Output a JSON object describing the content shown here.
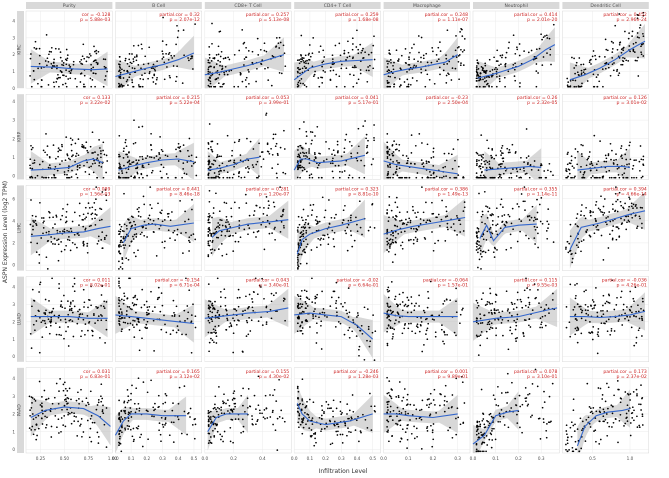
{
  "figure": {
    "ylabel": "ASPN Expression Level (log2 TPM)",
    "xlabel": "Infiltration Level"
  },
  "chart_data": {
    "type": "scatter",
    "columns": [
      "Purity",
      "B Cell",
      "CD8+ T Cell",
      "CD4+ T Cell",
      "Macrophage",
      "Neutrophil",
      "Dendritic Cell"
    ],
    "rows": [
      "KIRC",
      "KIRP",
      "LIHC",
      "LUAD",
      "PAAD"
    ],
    "x_ticks": [
      [
        "0.25",
        "0.50",
        "0.75",
        "1.00"
      ],
      [
        "0.0",
        "0.1",
        "0.2",
        "0.3",
        "0.4",
        "0.5"
      ],
      [
        "0.0",
        "0.2",
        "0.4"
      ],
      [
        "0.0",
        "0.1",
        "0.2",
        "0.3",
        "0.4",
        "0.5"
      ],
      [
        "0.0",
        "0.1",
        "0.2",
        "0.3"
      ],
      [
        "0.0",
        "0.1",
        "0.2",
        "0.3"
      ],
      [
        "0.5",
        "1.0"
      ]
    ],
    "x_ranges": [
      [
        0.1,
        1.0
      ],
      [
        0.0,
        0.55
      ],
      [
        0.0,
        0.6
      ],
      [
        0.0,
        0.55
      ],
      [
        0.0,
        0.35
      ],
      [
        0.0,
        0.38
      ],
      [
        0.1,
        1.25
      ]
    ],
    "y_ticks": [
      [
        "0",
        "1",
        "2",
        "3",
        "4"
      ],
      [
        "0",
        "1",
        "2",
        "3",
        "4"
      ],
      [
        "0",
        "2",
        "4",
        "6"
      ],
      [
        "0",
        "1",
        "2",
        "3",
        "4"
      ],
      [
        "0",
        "1",
        "2",
        "3",
        "4"
      ]
    ],
    "y_ranges": [
      [
        0,
        4.6
      ],
      [
        -0.2,
        4.4
      ],
      [
        -0.5,
        7.2
      ],
      [
        -0.3,
        4.6
      ],
      [
        -0.2,
        4.6
      ]
    ],
    "stats": [
      [
        {
          "label": "cor = -0.128",
          "p": "p = 5.88e-03"
        },
        {
          "label": "partial.cor = 0.32",
          "p": "p = 2.07e-12"
        },
        {
          "label": "partial.cor = 0.257",
          "p": "p = 5.13e-08"
        },
        {
          "label": "partial.cor = 0.259",
          "p": "p = 1.68e-08"
        },
        {
          "label": "partial.cor = 0.248",
          "p": "p = 1.11e-07"
        },
        {
          "label": "partial.cor = 0.414",
          "p": "p = 2.01e-20"
        },
        {
          "label": "partial.cor = 0.452",
          "p": "p = 2.96e-24"
        }
      ],
      [
        {
          "label": "cor = 0.133",
          "p": "p = 3.22e-02"
        },
        {
          "label": "partial.cor = 0.215",
          "p": "p = 5.22e-04"
        },
        {
          "label": "partial.cor = 0.053",
          "p": "p = 3.99e-01"
        },
        {
          "label": "partial.cor = 0.041",
          "p": "p = 5.17e-01"
        },
        {
          "label": "partial.cor = -0.23",
          "p": "p = 2.50e-04"
        },
        {
          "label": "partial.cor = 0.26",
          "p": "p = 2.32e-05"
        },
        {
          "label": "partial.cor = 0.126",
          "p": "p = 3.01e-02"
        }
      ],
      [
        {
          "label": "cor = 0.089",
          "p": "p = 1.56e-03"
        },
        {
          "label": "partial.cor = 0.441",
          "p": "p = 8.46e-18"
        },
        {
          "label": "partial.cor = 0.281",
          "p": "p = 1.20e-07"
        },
        {
          "label": "partial.cor = 0.323",
          "p": "p = 8.81e-10"
        },
        {
          "label": "partial.cor = 0.386",
          "p": "p = 1.49e-13"
        },
        {
          "label": "partial.cor = 0.355",
          "p": "p = 1.14e-11"
        },
        {
          "label": "partial.cor = 0.394",
          "p": "p = 4.66e-14"
        }
      ],
      [
        {
          "label": "cor = 0.011",
          "p": "p = 8.02e-01"
        },
        {
          "label": "partial.cor = -0.154",
          "p": "p = 6.71e-04"
        },
        {
          "label": "partial.cor = 0.043",
          "p": "p = 3.40e-01"
        },
        {
          "label": "partial.cor = -0.02",
          "p": "p = 6.64e-01"
        },
        {
          "label": "partial.cor = -0.064",
          "p": "p = 1.57e-01"
        },
        {
          "label": "partial.cor = 0.115",
          "p": "p = 9.55e-03"
        },
        {
          "label": "partial.cor = -0.036",
          "p": "p = 4.26e-01"
        }
      ],
      [
        {
          "label": "cor = 0.031",
          "p": "p = 6.83e-01"
        },
        {
          "label": "partial.cor = 0.165",
          "p": "p = 3.12e-02"
        },
        {
          "label": "partial.cor = 0.155",
          "p": "p = 4.30e-02"
        },
        {
          "label": "partial.cor = -0.246",
          "p": "p = 1.28e-03"
        },
        {
          "label": "partial.cor = 0.001",
          "p": "p = 9.89e-01"
        },
        {
          "label": "partial.cor = 0.078",
          "p": "p = 3.10e-01"
        },
        {
          "label": "partial.cor = 0.173",
          "p": "p = 2.37e-02"
        }
      ]
    ],
    "trends": [
      [
        [
          [
            0.15,
            1.3
          ],
          [
            0.4,
            1.25
          ],
          [
            0.6,
            1.15
          ],
          [
            0.8,
            1.1
          ],
          [
            0.95,
            1.15
          ]
        ],
        [
          [
            0.0,
            0.7
          ],
          [
            0.1,
            0.95
          ],
          [
            0.2,
            1.2
          ],
          [
            0.3,
            1.4
          ],
          [
            0.4,
            1.7
          ],
          [
            0.5,
            2.1
          ]
        ],
        [
          [
            0.0,
            0.8
          ],
          [
            0.1,
            0.95
          ],
          [
            0.2,
            1.15
          ],
          [
            0.3,
            1.35
          ],
          [
            0.4,
            1.6
          ],
          [
            0.55,
            2.0
          ]
        ],
        [
          [
            0.0,
            0.5
          ],
          [
            0.1,
            1.2
          ],
          [
            0.2,
            1.45
          ],
          [
            0.3,
            1.6
          ],
          [
            0.4,
            1.65
          ],
          [
            0.5,
            1.7
          ]
        ],
        [
          [
            0.0,
            0.8
          ],
          [
            0.05,
            1.0
          ],
          [
            0.1,
            1.15
          ],
          [
            0.15,
            1.25
          ],
          [
            0.2,
            1.4
          ],
          [
            0.25,
            1.55
          ],
          [
            0.3,
            2.0
          ]
        ],
        [
          [
            0.02,
            0.6
          ],
          [
            0.08,
            0.8
          ],
          [
            0.14,
            1.05
          ],
          [
            0.2,
            1.3
          ],
          [
            0.26,
            1.7
          ],
          [
            0.32,
            2.3
          ],
          [
            0.36,
            2.6
          ]
        ],
        [
          [
            0.2,
            0.5
          ],
          [
            0.4,
            0.8
          ],
          [
            0.6,
            1.2
          ],
          [
            0.8,
            1.7
          ],
          [
            1.0,
            2.3
          ],
          [
            1.2,
            2.8
          ]
        ]
      ],
      [
        [
          [
            0.15,
            0.3
          ],
          [
            0.35,
            0.35
          ],
          [
            0.55,
            0.45
          ],
          [
            0.7,
            0.8
          ],
          [
            0.8,
            0.9
          ],
          [
            0.9,
            0.7
          ]
        ],
        [
          [
            0.02,
            0.3
          ],
          [
            0.1,
            0.5
          ],
          [
            0.2,
            0.7
          ],
          [
            0.3,
            0.85
          ],
          [
            0.4,
            0.9
          ],
          [
            0.5,
            0.75
          ]
        ],
        [
          [
            0.02,
            0.3
          ],
          [
            0.1,
            0.4
          ],
          [
            0.2,
            0.6
          ],
          [
            0.3,
            0.9
          ],
          [
            0.38,
            1.0
          ]
        ],
        [
          [
            0.0,
            0.3
          ],
          [
            0.04,
            0.9
          ],
          [
            0.08,
            0.9
          ],
          [
            0.15,
            0.7
          ],
          [
            0.3,
            0.8
          ],
          [
            0.45,
            1.1
          ]
        ],
        [
          [
            0.0,
            0.8
          ],
          [
            0.05,
            0.6
          ],
          [
            0.1,
            0.5
          ],
          [
            0.15,
            0.4
          ],
          [
            0.2,
            0.3
          ],
          [
            0.25,
            0.2
          ],
          [
            0.3,
            0.1
          ]
        ],
        [
          [
            0.05,
            0.3
          ],
          [
            0.1,
            0.35
          ],
          [
            0.15,
            0.4
          ],
          [
            0.2,
            0.45
          ],
          [
            0.25,
            0.5
          ],
          [
            0.3,
            0.45
          ]
        ],
        [
          [
            0.3,
            0.3
          ],
          [
            0.5,
            0.4
          ],
          [
            0.7,
            0.5
          ],
          [
            0.9,
            0.5
          ],
          [
            1.0,
            0.45
          ]
        ]
      ],
      [
        [
          [
            0.15,
            2.6
          ],
          [
            0.3,
            2.7
          ],
          [
            0.5,
            2.9
          ],
          [
            0.7,
            3.0
          ],
          [
            0.85,
            3.3
          ],
          [
            0.98,
            3.5
          ]
        ],
        [
          [
            0.05,
            2.0
          ],
          [
            0.1,
            3.3
          ],
          [
            0.18,
            3.6
          ],
          [
            0.25,
            3.7
          ],
          [
            0.35,
            3.5
          ],
          [
            0.5,
            3.8
          ]
        ],
        [
          [
            0.05,
            2.5
          ],
          [
            0.1,
            3.1
          ],
          [
            0.2,
            3.4
          ],
          [
            0.3,
            3.7
          ],
          [
            0.45,
            3.9
          ],
          [
            0.58,
            4.1
          ]
        ],
        [
          [
            0.02,
            1.0
          ],
          [
            0.05,
            2.3
          ],
          [
            0.1,
            2.8
          ],
          [
            0.2,
            3.3
          ],
          [
            0.3,
            3.6
          ],
          [
            0.45,
            4.2
          ]
        ],
        [
          [
            0.0,
            2.8
          ],
          [
            0.06,
            3.2
          ],
          [
            0.12,
            3.5
          ],
          [
            0.2,
            3.8
          ],
          [
            0.28,
            4.1
          ],
          [
            0.33,
            4.3
          ]
        ],
        [
          [
            0.03,
            2.4
          ],
          [
            0.06,
            3.6
          ],
          [
            0.09,
            2.2
          ],
          [
            0.14,
            3.4
          ],
          [
            0.2,
            3.6
          ],
          [
            0.28,
            3.7
          ]
        ],
        [
          [
            0.2,
            1.4
          ],
          [
            0.35,
            3.4
          ],
          [
            0.6,
            3.8
          ],
          [
            0.8,
            4.2
          ],
          [
            1.0,
            4.6
          ],
          [
            1.2,
            4.9
          ]
        ]
      ],
      [
        [
          [
            0.15,
            2.3
          ],
          [
            0.35,
            2.3
          ],
          [
            0.55,
            2.3
          ],
          [
            0.75,
            2.2
          ],
          [
            0.95,
            2.2
          ]
        ],
        [
          [
            0.0,
            2.4
          ],
          [
            0.1,
            2.3
          ],
          [
            0.2,
            2.2
          ],
          [
            0.3,
            2.1
          ],
          [
            0.4,
            2.0
          ],
          [
            0.5,
            1.9
          ]
        ],
        [
          [
            0.0,
            2.2
          ],
          [
            0.1,
            2.3
          ],
          [
            0.2,
            2.4
          ],
          [
            0.3,
            2.5
          ],
          [
            0.45,
            2.6
          ],
          [
            0.58,
            2.8
          ]
        ],
        [
          [
            0.0,
            2.4
          ],
          [
            0.1,
            2.5
          ],
          [
            0.2,
            2.4
          ],
          [
            0.3,
            2.3
          ],
          [
            0.4,
            1.8
          ],
          [
            0.5,
            1.0
          ]
        ],
        [
          [
            0.0,
            2.5
          ],
          [
            0.05,
            2.35
          ],
          [
            0.1,
            2.3
          ],
          [
            0.2,
            2.3
          ],
          [
            0.3,
            2.3
          ]
        ],
        [
          [
            0.0,
            2.0
          ],
          [
            0.1,
            2.2
          ],
          [
            0.2,
            2.3
          ],
          [
            0.3,
            2.6
          ],
          [
            0.37,
            2.8
          ]
        ],
        [
          [
            0.2,
            2.3
          ],
          [
            0.4,
            2.3
          ],
          [
            0.6,
            2.25
          ],
          [
            0.8,
            2.3
          ],
          [
            1.0,
            2.4
          ],
          [
            1.2,
            2.6
          ]
        ]
      ],
      [
        [
          [
            0.15,
            1.8
          ],
          [
            0.3,
            2.2
          ],
          [
            0.5,
            2.4
          ],
          [
            0.7,
            2.3
          ],
          [
            0.85,
            1.9
          ],
          [
            0.98,
            1.3
          ]
        ],
        [
          [
            0.0,
            0.8
          ],
          [
            0.05,
            1.6
          ],
          [
            0.1,
            2.0
          ],
          [
            0.2,
            2.0
          ],
          [
            0.3,
            1.9
          ],
          [
            0.45,
            1.9
          ]
        ],
        [
          [
            0.02,
            1.0
          ],
          [
            0.08,
            1.8
          ],
          [
            0.15,
            2.0
          ],
          [
            0.25,
            2.0
          ],
          [
            0.3,
            2.0
          ]
        ],
        [
          [
            0.02,
            2.6
          ],
          [
            0.05,
            2.0
          ],
          [
            0.1,
            1.6
          ],
          [
            0.2,
            1.4
          ],
          [
            0.35,
            1.6
          ],
          [
            0.5,
            2.0
          ]
        ],
        [
          [
            0.0,
            2.0
          ],
          [
            0.05,
            2.0
          ],
          [
            0.1,
            1.9
          ],
          [
            0.2,
            1.8
          ],
          [
            0.3,
            2.0
          ]
        ],
        [
          [
            0.0,
            0.3
          ],
          [
            0.05,
            0.8
          ],
          [
            0.1,
            1.9
          ],
          [
            0.15,
            2.1
          ],
          [
            0.2,
            2.2
          ]
        ],
        [
          [
            0.3,
            0.2
          ],
          [
            0.4,
            1.3
          ],
          [
            0.55,
            1.9
          ],
          [
            0.7,
            2.1
          ],
          [
            0.9,
            2.2
          ],
          [
            1.0,
            2.3
          ]
        ]
      ]
    ],
    "colors": {
      "points": "#000000",
      "trend": "#3366CC",
      "band": "#BEBEBE",
      "stats_text": "#CC2222",
      "strip": "#D9D9D9",
      "axis_text": "#4D4D4D",
      "grid": "#EBEBEB"
    },
    "grid": true
  }
}
